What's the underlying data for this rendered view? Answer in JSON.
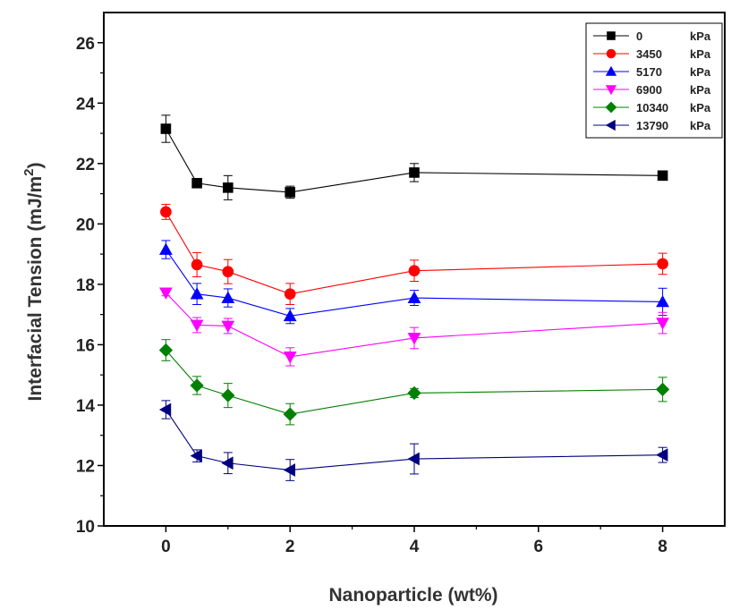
{
  "chart_data": {
    "type": "line",
    "title": "",
    "xlabel": "Nanoparticle (wt%)",
    "ylabel": "Interfacial Tension (mJ/m",
    "ylabel_superscript": "2",
    "ylabel_close": ")",
    "xlim": [
      -1,
      9
    ],
    "ylim": [
      10,
      27
    ],
    "x_ticks": [
      0,
      2,
      4,
      6,
      8
    ],
    "y_ticks": [
      10,
      12,
      14,
      16,
      18,
      20,
      22,
      24,
      26
    ],
    "x_tick_positions": [
      0,
      2,
      4,
      6,
      8
    ],
    "x_tick_labels": [
      "0",
      "2",
      "4",
      "6",
      "8"
    ],
    "legend_position": "top-right",
    "grid": false,
    "x": [
      0,
      0.5,
      1,
      2,
      4,
      8
    ],
    "series": [
      {
        "name": "0",
        "unit": "kPa",
        "color": "#000000",
        "marker": "square",
        "values": [
          23.15,
          21.35,
          21.2,
          21.05,
          21.7,
          21.6
        ],
        "errors": [
          0.45,
          0.1,
          0.4,
          0.2,
          0.3,
          0.15
        ]
      },
      {
        "name": "3450",
        "unit": "kPa",
        "color": "#ff0000",
        "marker": "circle",
        "values": [
          20.4,
          18.65,
          18.42,
          17.68,
          18.45,
          18.68
        ],
        "errors": [
          0.25,
          0.4,
          0.4,
          0.35,
          0.35,
          0.35
        ]
      },
      {
        "name": "5170",
        "unit": "kPa",
        "color": "#0000ff",
        "marker": "triangle-up",
        "values": [
          19.15,
          17.68,
          17.55,
          16.95,
          17.55,
          17.42
        ],
        "errors": [
          0.3,
          0.35,
          0.3,
          0.25,
          0.25,
          0.45
        ]
      },
      {
        "name": "6900",
        "unit": "kPa",
        "color": "#ff00ff",
        "marker": "triangle-down",
        "values": [
          17.72,
          16.65,
          16.62,
          15.6,
          16.22,
          16.72
        ],
        "errors": [
          0.1,
          0.25,
          0.25,
          0.3,
          0.35,
          0.35
        ]
      },
      {
        "name": "10340",
        "unit": "kPa",
        "color": "#008000",
        "marker": "diamond",
        "values": [
          15.82,
          14.65,
          14.32,
          13.7,
          14.4,
          14.52
        ],
        "errors": [
          0.35,
          0.3,
          0.4,
          0.35,
          0.15,
          0.4
        ]
      },
      {
        "name": "13790",
        "unit": "kPa",
        "color": "#000080",
        "marker": "triangle-left",
        "values": [
          13.85,
          12.32,
          12.08,
          11.85,
          12.22,
          12.35
        ],
        "errors": [
          0.3,
          0.2,
          0.35,
          0.35,
          0.5,
          0.25
        ]
      }
    ]
  }
}
